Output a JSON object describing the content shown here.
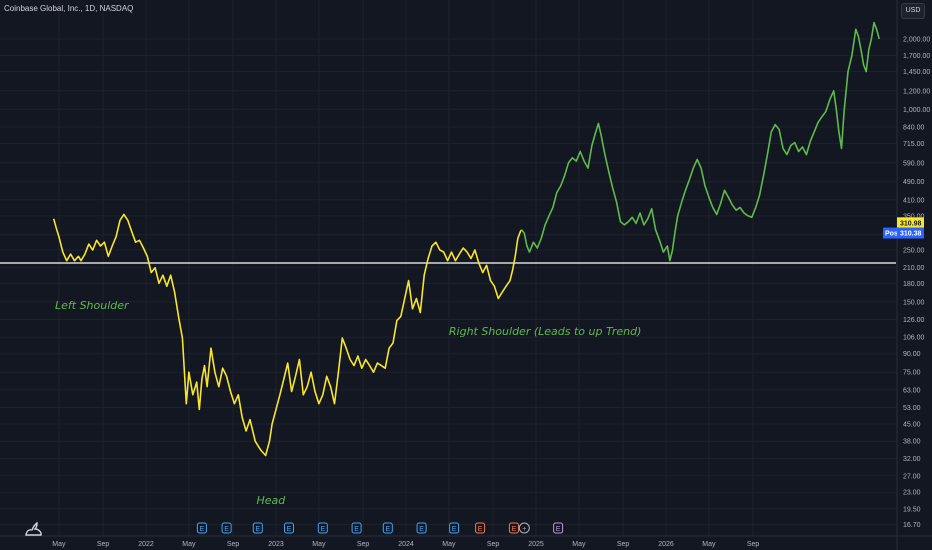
{
  "header": {
    "ticker_label": "Coinbase Global, Inc., 1D, NASDAQ",
    "currency_button": "USD"
  },
  "chart_data": {
    "type": "line",
    "price_scale": "log",
    "y_ticks": [
      16.7,
      19.5,
      23.0,
      27.0,
      32.0,
      38.0,
      45.0,
      53.0,
      63.0,
      75.0,
      90.0,
      106.0,
      126.0,
      150.0,
      180.0,
      210.0,
      250.0,
      290.0,
      350.0,
      410.0,
      490.0,
      590.0,
      715.0,
      840.0,
      1000.0,
      1200.0,
      1450.0,
      1700.0,
      2000.0
    ],
    "y_tick_labels": [
      "16.70",
      "19.50",
      "23.00",
      "27.00",
      "32.00",
      "38.00",
      "45.00",
      "53.00",
      "63.00",
      "75.00",
      "90.00",
      "106.00",
      "126.00",
      "150.00",
      "180.00",
      "210.00",
      "250.00",
      "290.00",
      "350.00",
      "410.00",
      "490.00",
      "590.00",
      "715.00",
      "840.00",
      "1,000.00",
      "1,200.00",
      "1,450.00",
      "1,700.00",
      "2,000.00"
    ],
    "x_ticks": [
      {
        "label": "May",
        "t": 2021.33
      },
      {
        "label": "Sep",
        "t": 2021.67
      },
      {
        "label": "2022",
        "t": 2022.0
      },
      {
        "label": "May",
        "t": 2022.33
      },
      {
        "label": "Sep",
        "t": 2022.67
      },
      {
        "label": "2023",
        "t": 2023.0
      },
      {
        "label": "May",
        "t": 2023.33
      },
      {
        "label": "Sep",
        "t": 2023.67
      },
      {
        "label": "2024",
        "t": 2024.0
      },
      {
        "label": "May",
        "t": 2024.33
      },
      {
        "label": "Sep",
        "t": 2024.67
      },
      {
        "label": "2025",
        "t": 2025.0
      },
      {
        "label": "May",
        "t": 2025.33
      },
      {
        "label": "Sep",
        "t": 2025.67
      },
      {
        "label": "2026",
        "t": 2026.0
      },
      {
        "label": "May",
        "t": 2026.33
      },
      {
        "label": "Sep",
        "t": 2026.67
      }
    ],
    "series": [
      {
        "color": "#f7e62b",
        "points": [
          [
            2021.29,
            340
          ],
          [
            2021.31,
            310
          ],
          [
            2021.33,
            285
          ],
          [
            2021.36,
            245
          ],
          [
            2021.39,
            225
          ],
          [
            2021.42,
            240
          ],
          [
            2021.45,
            225
          ],
          [
            2021.48,
            235
          ],
          [
            2021.5,
            225
          ],
          [
            2021.53,
            240
          ],
          [
            2021.56,
            265
          ],
          [
            2021.59,
            250
          ],
          [
            2021.62,
            275
          ],
          [
            2021.65,
            260
          ],
          [
            2021.68,
            270
          ],
          [
            2021.71,
            235
          ],
          [
            2021.74,
            260
          ],
          [
            2021.77,
            285
          ],
          [
            2021.8,
            335
          ],
          [
            2021.83,
            355
          ],
          [
            2021.86,
            335
          ],
          [
            2021.89,
            300
          ],
          [
            2021.92,
            270
          ],
          [
            2021.95,
            275
          ],
          [
            2021.98,
            255
          ],
          [
            2022.01,
            235
          ],
          [
            2022.04,
            200
          ],
          [
            2022.07,
            210
          ],
          [
            2022.1,
            180
          ],
          [
            2022.13,
            195
          ],
          [
            2022.16,
            175
          ],
          [
            2022.19,
            195
          ],
          [
            2022.22,
            165
          ],
          [
            2022.25,
            130
          ],
          [
            2022.28,
            105
          ],
          [
            2022.31,
            55
          ],
          [
            2022.33,
            75
          ],
          [
            2022.36,
            60
          ],
          [
            2022.39,
            68
          ],
          [
            2022.41,
            52
          ],
          [
            2022.43,
            70
          ],
          [
            2022.45,
            80
          ],
          [
            2022.47,
            65
          ],
          [
            2022.5,
            95
          ],
          [
            2022.53,
            75
          ],
          [
            2022.56,
            65
          ],
          [
            2022.59,
            78
          ],
          [
            2022.62,
            72
          ],
          [
            2022.65,
            62
          ],
          [
            2022.68,
            55
          ],
          [
            2022.71,
            60
          ],
          [
            2022.74,
            48
          ],
          [
            2022.77,
            42
          ],
          [
            2022.8,
            47
          ],
          [
            2022.84,
            38
          ],
          [
            2022.88,
            35
          ],
          [
            2022.92,
            33
          ],
          [
            2022.95,
            38
          ],
          [
            2022.97,
            45
          ],
          [
            2023.0,
            52
          ],
          [
            2023.03,
            60
          ],
          [
            2023.06,
            70
          ],
          [
            2023.09,
            82
          ],
          [
            2023.12,
            62
          ],
          [
            2023.15,
            72
          ],
          [
            2023.18,
            85
          ],
          [
            2023.21,
            60
          ],
          [
            2023.24,
            65
          ],
          [
            2023.27,
            75
          ],
          [
            2023.3,
            62
          ],
          [
            2023.33,
            55
          ],
          [
            2023.36,
            60
          ],
          [
            2023.39,
            72
          ],
          [
            2023.42,
            65
          ],
          [
            2023.45,
            55
          ],
          [
            2023.48,
            75
          ],
          [
            2023.51,
            105
          ],
          [
            2023.54,
            95
          ],
          [
            2023.57,
            85
          ],
          [
            2023.6,
            80
          ],
          [
            2023.63,
            88
          ],
          [
            2023.66,
            78
          ],
          [
            2023.69,
            85
          ],
          [
            2023.72,
            80
          ],
          [
            2023.75,
            75
          ],
          [
            2023.78,
            82
          ],
          [
            2023.81,
            80
          ],
          [
            2023.84,
            78
          ],
          [
            2023.87,
            95
          ],
          [
            2023.9,
            100
          ],
          [
            2023.93,
            125
          ],
          [
            2023.96,
            130
          ],
          [
            2023.99,
            155
          ],
          [
            2024.02,
            185
          ],
          [
            2024.05,
            140
          ],
          [
            2024.08,
            155
          ],
          [
            2024.11,
            135
          ],
          [
            2024.14,
            195
          ],
          [
            2024.17,
            230
          ],
          [
            2024.2,
            260
          ],
          [
            2024.23,
            270
          ],
          [
            2024.26,
            250
          ],
          [
            2024.29,
            245
          ],
          [
            2024.32,
            225
          ],
          [
            2024.35,
            245
          ],
          [
            2024.38,
            225
          ],
          [
            2024.41,
            240
          ],
          [
            2024.44,
            255
          ],
          [
            2024.47,
            245
          ],
          [
            2024.5,
            230
          ],
          [
            2024.53,
            250
          ],
          [
            2024.56,
            220
          ],
          [
            2024.59,
            200
          ],
          [
            2024.62,
            215
          ],
          [
            2024.65,
            185
          ],
          [
            2024.68,
            175
          ],
          [
            2024.71,
            155
          ],
          [
            2024.74,
            165
          ],
          [
            2024.77,
            175
          ],
          [
            2024.8,
            185
          ],
          [
            2024.82,
            205
          ],
          [
            2024.84,
            235
          ],
          [
            2024.86,
            280
          ],
          [
            2024.88,
            300
          ],
          [
            2024.89,
            305
          ]
        ]
      },
      {
        "color": "#5fba4c",
        "points": [
          [
            2024.89,
            305
          ],
          [
            2024.91,
            295
          ],
          [
            2024.93,
            260
          ],
          [
            2024.95,
            245
          ],
          [
            2024.98,
            270
          ],
          [
            2025.01,
            255
          ],
          [
            2025.04,
            280
          ],
          [
            2025.07,
            320
          ],
          [
            2025.1,
            350
          ],
          [
            2025.13,
            380
          ],
          [
            2025.16,
            440
          ],
          [
            2025.19,
            470
          ],
          [
            2025.22,
            520
          ],
          [
            2025.25,
            590
          ],
          [
            2025.28,
            620
          ],
          [
            2025.31,
            600
          ],
          [
            2025.34,
            660
          ],
          [
            2025.37,
            600
          ],
          [
            2025.4,
            560
          ],
          [
            2025.43,
            700
          ],
          [
            2025.46,
            800
          ],
          [
            2025.48,
            870
          ],
          [
            2025.5,
            780
          ],
          [
            2025.53,
            640
          ],
          [
            2025.56,
            540
          ],
          [
            2025.59,
            460
          ],
          [
            2025.62,
            400
          ],
          [
            2025.65,
            330
          ],
          [
            2025.68,
            320
          ],
          [
            2025.71,
            330
          ],
          [
            2025.74,
            345
          ],
          [
            2025.77,
            325
          ],
          [
            2025.8,
            360
          ],
          [
            2025.83,
            320
          ],
          [
            2025.86,
            340
          ],
          [
            2025.89,
            375
          ],
          [
            2025.92,
            305
          ],
          [
            2025.95,
            275
          ],
          [
            2025.98,
            245
          ],
          [
            2026.01,
            260
          ],
          [
            2026.03,
            225
          ],
          [
            2026.05,
            250
          ],
          [
            2026.07,
            300
          ],
          [
            2026.09,
            350
          ],
          [
            2026.12,
            400
          ],
          [
            2026.15,
            450
          ],
          [
            2026.18,
            500
          ],
          [
            2026.21,
            560
          ],
          [
            2026.24,
            610
          ],
          [
            2026.27,
            560
          ],
          [
            2026.3,
            470
          ],
          [
            2026.33,
            420
          ],
          [
            2026.36,
            380
          ],
          [
            2026.39,
            355
          ],
          [
            2026.42,
            395
          ],
          [
            2026.45,
            450
          ],
          [
            2026.48,
            420
          ],
          [
            2026.51,
            390
          ],
          [
            2026.54,
            370
          ],
          [
            2026.57,
            380
          ],
          [
            2026.6,
            360
          ],
          [
            2026.63,
            350
          ],
          [
            2026.66,
            345
          ],
          [
            2026.69,
            380
          ],
          [
            2026.72,
            430
          ],
          [
            2026.75,
            520
          ],
          [
            2026.78,
            640
          ],
          [
            2026.81,
            800
          ],
          [
            2026.84,
            860
          ],
          [
            2026.87,
            820
          ],
          [
            2026.9,
            680
          ],
          [
            2026.93,
            640
          ],
          [
            2026.96,
            700
          ],
          [
            2026.99,
            720
          ],
          [
            2027.02,
            660
          ],
          [
            2027.05,
            690
          ],
          [
            2027.08,
            640
          ],
          [
            2027.11,
            730
          ],
          [
            2027.14,
            800
          ],
          [
            2027.17,
            880
          ],
          [
            2027.2,
            930
          ],
          [
            2027.23,
            980
          ],
          [
            2027.26,
            1100
          ],
          [
            2027.29,
            1200
          ],
          [
            2027.31,
            1000
          ],
          [
            2027.33,
            800
          ],
          [
            2027.35,
            680
          ],
          [
            2027.37,
            980
          ],
          [
            2027.4,
            1450
          ],
          [
            2027.43,
            1700
          ],
          [
            2027.46,
            2200
          ],
          [
            2027.48,
            2050
          ],
          [
            2027.5,
            1800
          ],
          [
            2027.52,
            1550
          ],
          [
            2027.54,
            1450
          ],
          [
            2027.56,
            1800
          ],
          [
            2027.58,
            2000
          ],
          [
            2027.6,
            2350
          ],
          [
            2027.62,
            2200
          ],
          [
            2027.64,
            2000
          ]
        ]
      }
    ],
    "horizontal_line": {
      "value": 220,
      "color": "#ffffff"
    },
    "price_tags": [
      {
        "label": "310.98",
        "value": 310.98,
        "bg": "#f7e62b",
        "fg": "#131722"
      },
      {
        "prefix": "Post",
        "label": "310.38",
        "value": 310.38,
        "bg": "#2962ff",
        "fg": "#ffffff"
      }
    ],
    "annotations": [
      {
        "text": "Left Shoulder",
        "t": 2021.3,
        "value": 140
      },
      {
        "text": "Head",
        "t": 2022.85,
        "value": 20.5
      },
      {
        "text": "Right Shoulder (Leads to up Trend)",
        "t": 2024.33,
        "value": 108
      }
    ],
    "events": [
      {
        "t": 2022.43,
        "label": "E",
        "color": "#42a5f5"
      },
      {
        "t": 2022.62,
        "label": "E",
        "color": "#42a5f5"
      },
      {
        "t": 2022.86,
        "label": "E",
        "color": "#42a5f5"
      },
      {
        "t": 2023.1,
        "label": "E",
        "color": "#42a5f5"
      },
      {
        "t": 2023.36,
        "label": "E",
        "color": "#42a5f5"
      },
      {
        "t": 2023.62,
        "label": "E",
        "color": "#42a5f5"
      },
      {
        "t": 2023.86,
        "label": "E",
        "color": "#42a5f5"
      },
      {
        "t": 2024.12,
        "label": "E",
        "color": "#42a5f5"
      },
      {
        "t": 2024.37,
        "label": "E",
        "color": "#42a5f5"
      },
      {
        "t": 2024.57,
        "label": "E",
        "color": "#f57c4c"
      },
      {
        "t": 2024.83,
        "label": "E",
        "color": "#f57c4c"
      },
      {
        "t": 2024.91,
        "label": "+",
        "color": "#b2b5be"
      },
      {
        "t": 2025.17,
        "label": "E",
        "color": "#b39ddb"
      }
    ]
  }
}
